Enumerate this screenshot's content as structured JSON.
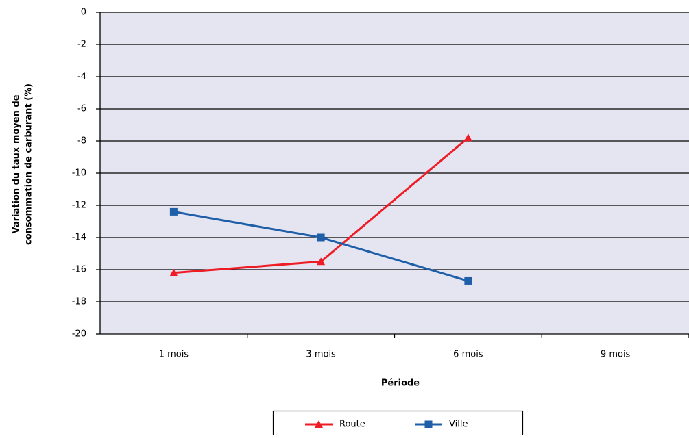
{
  "chart_data": {
    "type": "line",
    "y_label": [
      "Variation du taux moyen de",
      "consommation de carburant (%)"
    ],
    "x_label": "Période",
    "categories": [
      "1 mois",
      "3 mois",
      "6 mois",
      "9 mois"
    ],
    "series": [
      {
        "name": "Route",
        "color": "#ee1c25",
        "marker": "triangle",
        "values": [
          -16.2,
          -15.5,
          -7.8,
          null
        ]
      },
      {
        "name": "Ville",
        "color": "#1f5ea8",
        "marker": "square",
        "values": [
          -12.4,
          -14.0,
          -16.7,
          null
        ]
      }
    ],
    "ylim": [
      -20,
      0
    ],
    "yticks": [
      0,
      -2,
      -4,
      -6,
      -8,
      -10,
      -12,
      -14,
      -16,
      -18,
      -20
    ],
    "grid": true,
    "legend": "bottom"
  }
}
